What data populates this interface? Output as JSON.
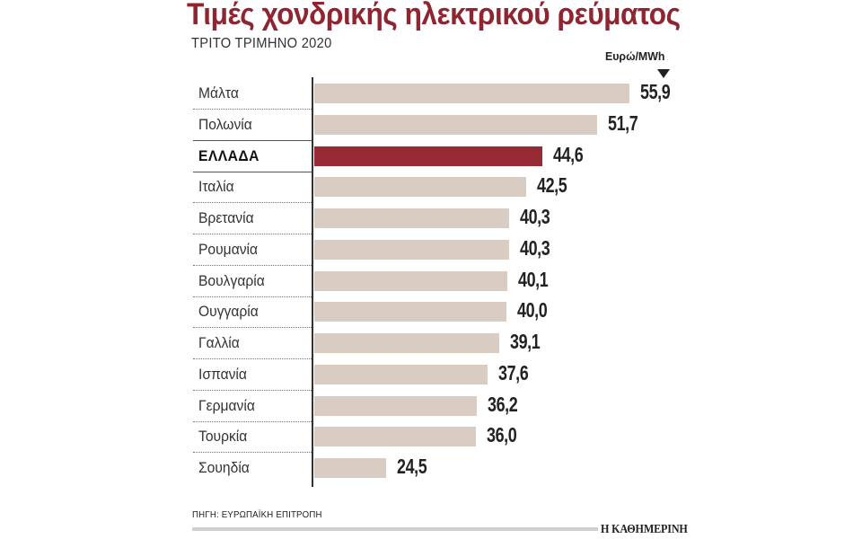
{
  "header": {
    "title": "Τιμές χονδρικής ηλεκτρικού ρεύματος",
    "subtitle": "ΤΡΙΤΟ ΤΡΙΜΗΝΟ 2020",
    "unit": "Ευρώ/MWh"
  },
  "footer": {
    "source": "ΠΗΓΗ: ΕΥΡΩΠΑΪΚΗ ΕΠΙΤΡΟΠΗ",
    "brand": "Η ΚΑΘΗΜΕΡΙΝΗ"
  },
  "colors": {
    "title": "#8f2530",
    "bar_default": "#d9cdc3",
    "bar_highlight": "#962a35"
  },
  "chart_data": {
    "type": "bar",
    "orientation": "horizontal",
    "title": "Τιμές χονδρικής ηλεκτρικού ρεύματος",
    "subtitle": "ΤΡΙΤΟ ΤΡΙΜΗΝΟ 2020",
    "xlabel": "Ευρώ/MWh",
    "ylabel": "",
    "categories": [
      "Μάλτα",
      "Πολωνία",
      "ΕΛΛΑΔΑ",
      "Ιταλία",
      "Βρετανία",
      "Ρουμανία",
      "Βουλγαρία",
      "Ουγγαρία",
      "Γαλλία",
      "Ισπανία",
      "Γερμανία",
      "Τουρκία",
      "Σουηδία"
    ],
    "values": [
      55.9,
      51.7,
      44.6,
      42.5,
      40.3,
      40.3,
      40.1,
      40.0,
      39.1,
      37.6,
      36.2,
      36.0,
      24.5
    ],
    "value_labels": [
      "55,9",
      "51,7",
      "44,6",
      "42,5",
      "40,3",
      "40,3",
      "40,1",
      "40,0",
      "39,1",
      "37,6",
      "36,2",
      "36,0",
      "24,5"
    ],
    "highlight": "ΕΛΛΑΔΑ",
    "grid": false,
    "legend": "none",
    "source": "ΠΗΓΗ: ΕΥΡΩΠΑΪΚΗ ΕΠΙΤΡΟΠΗ"
  }
}
